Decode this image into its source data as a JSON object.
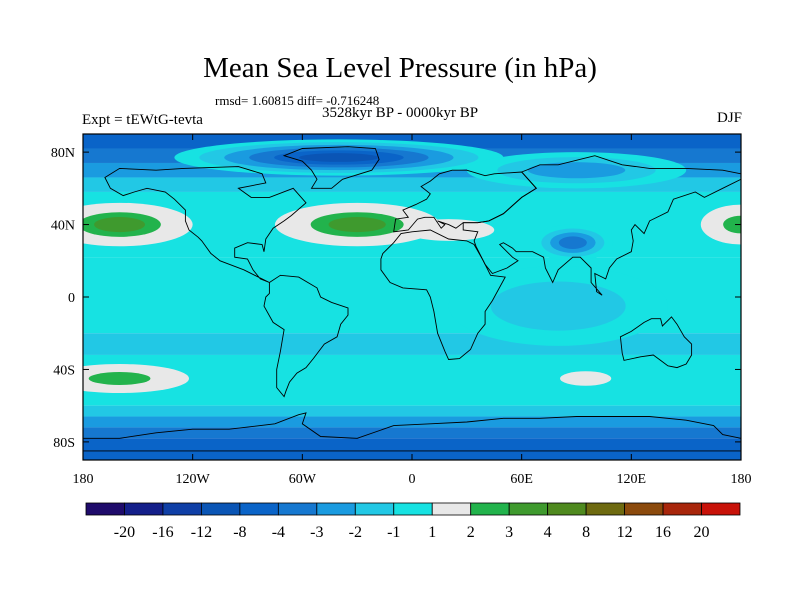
{
  "chart_data": {
    "type": "heatmap",
    "title": "Mean Sea Level Pressure (in hPa)",
    "stats_line": "rmsd= 1.60815 diff= -0.716248",
    "period": "3528kyr BP - 0000kyr BP",
    "left_label": "Expt = tEWtG-tevta",
    "right_label": "DJF",
    "x_ticks": [
      "180",
      "120W",
      "60W",
      "0",
      "60E",
      "120E",
      "180"
    ],
    "x_tick_values": [
      -180,
      -120,
      -60,
      0,
      60,
      120,
      180
    ],
    "y_ticks": [
      "80N",
      "40N",
      "0",
      "40S",
      "80S"
    ],
    "y_tick_values": [
      80,
      40,
      0,
      -40,
      -80
    ],
    "xlim": [
      -180,
      180
    ],
    "ylim": [
      -90,
      90
    ],
    "colorbar_labels": [
      "-20",
      "-16",
      "-12",
      "-8",
      "-4",
      "-3",
      "-2",
      "-1",
      "1",
      "2",
      "3",
      "4",
      "8",
      "12",
      "16",
      "20"
    ],
    "colorbar_colors": [
      "#1f0b6b",
      "#141f8a",
      "#0f3fa6",
      "#0a55b5",
      "#0a64c8",
      "#1678d0",
      "#1a9be0",
      "#22c8e5",
      "#17e2e2",
      "#e8e8e8",
      "#22b34c",
      "#3f9a2e",
      "#4f8a1f",
      "#6e6a10",
      "#8b4a0c",
      "#a8260b",
      "#c81209"
    ],
    "colorbar_ranges": [
      [
        -999,
        -20
      ],
      [
        -20,
        -16
      ],
      [
        -16,
        -12
      ],
      [
        -12,
        -8
      ],
      [
        -8,
        -4
      ],
      [
        -4,
        -3
      ],
      [
        -3,
        -2
      ],
      [
        -2,
        -1
      ],
      [
        -1,
        1
      ],
      [
        1,
        2
      ],
      [
        2,
        3
      ],
      [
        3,
        4
      ],
      [
        4,
        8
      ],
      [
        8,
        12
      ],
      [
        12,
        16
      ],
      [
        16,
        20
      ],
      [
        20,
        999
      ]
    ],
    "zonal_bands": [
      {
        "lat_range": [
          82,
          90
        ],
        "value": -5.5
      },
      {
        "lat_range": [
          74,
          82
        ],
        "value": -3.5
      },
      {
        "lat_range": [
          66,
          74
        ],
        "value": -2.5
      },
      {
        "lat_range": [
          58,
          66
        ],
        "value": -1.5
      },
      {
        "lat_range": [
          22,
          58
        ],
        "value": 0
      },
      {
        "lat_range": [
          -20,
          22
        ],
        "value": 0
      },
      {
        "lat_range": [
          -32,
          -20
        ],
        "value": -1.5
      },
      {
        "lat_range": [
          -60,
          -32
        ],
        "value": 0
      },
      {
        "lat_range": [
          -66,
          -60
        ],
        "value": -1.5
      },
      {
        "lat_range": [
          -72,
          -66
        ],
        "value": -2.5
      },
      {
        "lat_range": [
          -78,
          -72
        ],
        "value": -3.5
      },
      {
        "lat_range": [
          -90,
          -78
        ],
        "value": -4.5
      }
    ],
    "anomalies": [
      {
        "name": "north-atlantic-high",
        "lon": -30,
        "lat": 40,
        "lon_radius": 45,
        "lat_radius": 12,
        "value": 3.5
      },
      {
        "name": "north-pacific-high",
        "lon": -160,
        "lat": 40,
        "lon_radius": 40,
        "lat_radius": 12,
        "value": 3.5
      },
      {
        "name": "north-pacific-high-east",
        "lon": 180,
        "lat": 40,
        "lon_radius": 22,
        "lat_radius": 11,
        "value": 2.5
      },
      {
        "name": "mediterranean-high",
        "lon": 20,
        "lat": 37,
        "lon_radius": 25,
        "lat_radius": 6,
        "value": 2.0
      },
      {
        "name": "south-pacific-high",
        "lon": -160,
        "lat": -45,
        "lon_radius": 38,
        "lat_radius": 8,
        "value": 2.5
      },
      {
        "name": "south-indian-high",
        "lon": 95,
        "lat": -45,
        "lon_radius": 14,
        "lat_radius": 4,
        "value": 2.0
      },
      {
        "name": "tibetan-low",
        "lon": 88,
        "lat": 30,
        "lon_radius": 22,
        "lat_radius": 10,
        "value": -3.5
      },
      {
        "name": "indian-ocean-low",
        "lon": 80,
        "lat": -5,
        "lon_radius": 60,
        "lat_radius": 22,
        "value": -1.5
      },
      {
        "name": "arctic-low",
        "lon": -40,
        "lat": 77,
        "lon_radius": 90,
        "lat_radius": 10,
        "value": -8.5
      },
      {
        "name": "siberian-low",
        "lon": 90,
        "lat": 70,
        "lon_radius": 60,
        "lat_radius": 10,
        "value": -2.5
      }
    ],
    "continents": [
      {
        "name": "north-america",
        "points": [
          [
            -168,
            66
          ],
          [
            -160,
            71
          ],
          [
            -140,
            70
          ],
          [
            -125,
            71
          ],
          [
            -95,
            72
          ],
          [
            -82,
            68
          ],
          [
            -80,
            63
          ],
          [
            -95,
            60
          ],
          [
            -88,
            55
          ],
          [
            -78,
            55
          ],
          [
            -65,
            60
          ],
          [
            -58,
            52
          ],
          [
            -66,
            45
          ],
          [
            -70,
            42
          ],
          [
            -76,
            38
          ],
          [
            -80,
            32
          ],
          [
            -81,
            25
          ],
          [
            -82,
            29
          ],
          [
            -90,
            30
          ],
          [
            -97,
            27
          ],
          [
            -97,
            22
          ],
          [
            -90,
            21
          ],
          [
            -87,
            15
          ],
          [
            -83,
            10
          ],
          [
            -78,
            8
          ],
          [
            -86,
            12
          ],
          [
            -92,
            15
          ],
          [
            -105,
            20
          ],
          [
            -110,
            24
          ],
          [
            -115,
            31
          ],
          [
            -117,
            33
          ],
          [
            -122,
            37
          ],
          [
            -124,
            42
          ],
          [
            -124,
            48
          ],
          [
            -130,
            54
          ],
          [
            -135,
            58
          ],
          [
            -145,
            60
          ],
          [
            -152,
            58
          ],
          [
            -158,
            56
          ],
          [
            -165,
            60
          ]
        ]
      },
      {
        "name": "greenland",
        "points": [
          [
            -55,
            60
          ],
          [
            -44,
            60
          ],
          [
            -38,
            65
          ],
          [
            -22,
            70
          ],
          [
            -18,
            76
          ],
          [
            -20,
            82
          ],
          [
            -35,
            83
          ],
          [
            -60,
            82
          ],
          [
            -70,
            78
          ],
          [
            -60,
            75
          ],
          [
            -55,
            70
          ],
          [
            -52,
            65
          ]
        ]
      },
      {
        "name": "south-america",
        "points": [
          [
            -78,
            8
          ],
          [
            -72,
            12
          ],
          [
            -62,
            11
          ],
          [
            -52,
            5
          ],
          [
            -50,
            0
          ],
          [
            -44,
            -3
          ],
          [
            -35,
            -6
          ],
          [
            -35,
            -10
          ],
          [
            -39,
            -15
          ],
          [
            -41,
            -22
          ],
          [
            -48,
            -26
          ],
          [
            -54,
            -34
          ],
          [
            -58,
            -39
          ],
          [
            -63,
            -42
          ],
          [
            -67,
            -47
          ],
          [
            -69,
            -52
          ],
          [
            -70,
            -55
          ],
          [
            -74,
            -50
          ],
          [
            -74,
            -40
          ],
          [
            -72,
            -30
          ],
          [
            -70,
            -18
          ],
          [
            -76,
            -14
          ],
          [
            -81,
            -5
          ],
          [
            -80,
            0
          ],
          [
            -78,
            2
          ]
        ]
      },
      {
        "name": "africa",
        "points": [
          [
            -17,
            21
          ],
          [
            -17,
            15
          ],
          [
            -12,
            8
          ],
          [
            -5,
            5
          ],
          [
            8,
            4
          ],
          [
            10,
            0
          ],
          [
            12,
            -8
          ],
          [
            14,
            -20
          ],
          [
            18,
            -30
          ],
          [
            20,
            -34.5
          ],
          [
            26,
            -34
          ],
          [
            32,
            -29
          ],
          [
            36,
            -20
          ],
          [
            40,
            -15
          ],
          [
            40,
            -8
          ],
          [
            44,
            -2
          ],
          [
            51,
            11
          ],
          [
            43,
            12
          ],
          [
            39,
            20
          ],
          [
            34,
            29
          ],
          [
            30,
            31
          ],
          [
            20,
            32
          ],
          [
            10,
            37
          ],
          [
            0,
            36
          ],
          [
            -6,
            35
          ],
          [
            -10,
            30
          ],
          [
            -16,
            24
          ]
        ]
      },
      {
        "name": "europe",
        "points": [
          [
            -10,
            36
          ],
          [
            -9,
            43
          ],
          [
            -2,
            44
          ],
          [
            -5,
            48
          ],
          [
            2,
            51
          ],
          [
            8,
            54
          ],
          [
            10,
            57
          ],
          [
            5,
            61
          ],
          [
            10,
            64
          ],
          [
            15,
            68
          ],
          [
            22,
            70
          ],
          [
            30,
            70
          ],
          [
            40,
            67
          ],
          [
            45,
            68
          ],
          [
            60,
            69
          ],
          [
            68,
            60
          ],
          [
            60,
            55
          ],
          [
            50,
            46
          ],
          [
            42,
            42
          ],
          [
            36,
            41
          ],
          [
            28,
            41
          ],
          [
            24,
            38
          ],
          [
            20,
            40
          ],
          [
            14,
            42
          ],
          [
            18,
            40
          ],
          [
            16,
            38
          ],
          [
            12,
            44
          ],
          [
            7,
            44
          ],
          [
            3,
            43
          ],
          [
            -2,
            37
          ]
        ]
      },
      {
        "name": "asia",
        "points": [
          [
            60,
            69
          ],
          [
            70,
            73
          ],
          [
            80,
            73
          ],
          [
            100,
            78
          ],
          [
            115,
            73
          ],
          [
            130,
            71
          ],
          [
            150,
            71
          ],
          [
            170,
            70
          ],
          [
            180,
            68
          ],
          [
            180,
            65
          ],
          [
            170,
            60
          ],
          [
            160,
            55
          ],
          [
            155,
            58
          ],
          [
            143,
            54
          ],
          [
            140,
            47
          ],
          [
            130,
            42
          ],
          [
            127,
            35
          ],
          [
            122,
            40
          ],
          [
            120,
            37
          ],
          [
            121,
            31
          ],
          [
            120,
            25
          ],
          [
            112,
            21
          ],
          [
            108,
            16
          ],
          [
            106,
            10
          ],
          [
            100,
            13
          ],
          [
            101,
            3
          ],
          [
            104,
            1
          ],
          [
            98,
            8
          ],
          [
            98,
            16
          ],
          [
            92,
            22
          ],
          [
            88,
            22
          ],
          [
            80,
            15
          ],
          [
            77,
            8
          ],
          [
            73,
            16
          ],
          [
            72,
            22
          ],
          [
            66,
            25
          ],
          [
            57,
            25
          ],
          [
            55,
            27
          ],
          [
            50,
            30
          ],
          [
            48,
            29
          ],
          [
            55,
            22
          ],
          [
            58,
            20
          ],
          [
            52,
            16
          ],
          [
            44,
            13
          ],
          [
            40,
            18
          ],
          [
            35,
            28
          ],
          [
            34,
            31
          ],
          [
            36,
            36
          ],
          [
            28,
            37
          ],
          [
            28,
            41
          ],
          [
            36,
            41
          ],
          [
            42,
            42
          ],
          [
            50,
            46
          ],
          [
            60,
            55
          ],
          [
            68,
            60
          ]
        ]
      },
      {
        "name": "australia",
        "points": [
          [
            114,
            -22
          ],
          [
            120,
            -19
          ],
          [
            127,
            -14
          ],
          [
            131,
            -12
          ],
          [
            136,
            -12
          ],
          [
            137,
            -16
          ],
          [
            142,
            -11
          ],
          [
            145,
            -15
          ],
          [
            149,
            -22
          ],
          [
            153,
            -26
          ],
          [
            153,
            -32
          ],
          [
            150,
            -37
          ],
          [
            145,
            -39
          ],
          [
            140,
            -38
          ],
          [
            136,
            -35
          ],
          [
            132,
            -32
          ],
          [
            125,
            -33
          ],
          [
            116,
            -35
          ],
          [
            115,
            -31
          ]
        ]
      },
      {
        "name": "antarctica",
        "points": [
          [
            -180,
            -85
          ],
          [
            -180,
            -78
          ],
          [
            -160,
            -78
          ],
          [
            -140,
            -75
          ],
          [
            -120,
            -73
          ],
          [
            -100,
            -73
          ],
          [
            -75,
            -70
          ],
          [
            -62,
            -65
          ],
          [
            -58,
            -64
          ],
          [
            -60,
            -70
          ],
          [
            -50,
            -77
          ],
          [
            -30,
            -78
          ],
          [
            -10,
            -71
          ],
          [
            10,
            -70
          ],
          [
            30,
            -69
          ],
          [
            50,
            -67
          ],
          [
            70,
            -67
          ],
          [
            90,
            -66
          ],
          [
            110,
            -66
          ],
          [
            130,
            -66
          ],
          [
            150,
            -68
          ],
          [
            165,
            -71
          ],
          [
            170,
            -76
          ],
          [
            180,
            -78
          ],
          [
            180,
            -85
          ]
        ]
      }
    ]
  }
}
